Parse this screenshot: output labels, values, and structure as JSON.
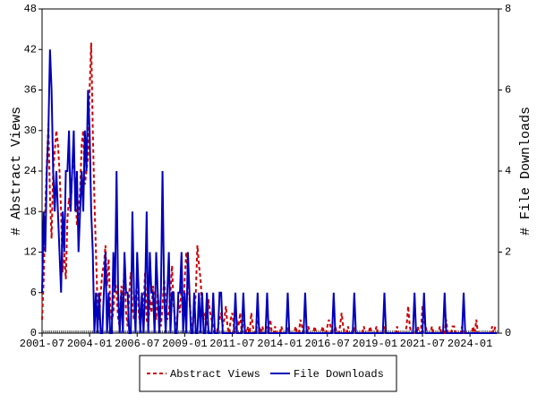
{
  "chart_data": {
    "type": "line",
    "ylabel": "# Abstract Views",
    "y2label": "# File Downloads",
    "categories": [
      "2001-07",
      null,
      null,
      null,
      null,
      null,
      null,
      null,
      null,
      null,
      null,
      null,
      null,
      null,
      null,
      null,
      null,
      null,
      null,
      null,
      null,
      null,
      null,
      null,
      null,
      null,
      null,
      null,
      null,
      null,
      "2004-01",
      null,
      null,
      null,
      null,
      null,
      null,
      null,
      null,
      null,
      null,
      null,
      null,
      null,
      null,
      null,
      null,
      null,
      null,
      null,
      null,
      null,
      null,
      null,
      null,
      null,
      null,
      null,
      null,
      null,
      "2006-07",
      null,
      null,
      null,
      null,
      null,
      null,
      null,
      null,
      null,
      null,
      null,
      null,
      null,
      null,
      null,
      null,
      null,
      null,
      null,
      null,
      null,
      null,
      null,
      null,
      null,
      null,
      null,
      null,
      null,
      "2009-01",
      null,
      null,
      null,
      null,
      null,
      null,
      null,
      null,
      null,
      null,
      null,
      null,
      null,
      null,
      null,
      null,
      null,
      null,
      null,
      null,
      null,
      null,
      null,
      null,
      null,
      null,
      null,
      null,
      null,
      "2011-07",
      null,
      null,
      null,
      null,
      null,
      null,
      null,
      null,
      null,
      null,
      null,
      null,
      null,
      null,
      null,
      null,
      null,
      null,
      null,
      null,
      null,
      null,
      null,
      null,
      null,
      null,
      null,
      null,
      null,
      "2014-01",
      null,
      null,
      null,
      null,
      null,
      null,
      null,
      null,
      null,
      null,
      null,
      null,
      null,
      null,
      null,
      null,
      null,
      null,
      null,
      null,
      null,
      null,
      null,
      null,
      null,
      null,
      null,
      null,
      null,
      "2016-07",
      null,
      null,
      null,
      null,
      null,
      null,
      null,
      null,
      null,
      null,
      null,
      null,
      null,
      null,
      null,
      null,
      null,
      null,
      null,
      null,
      null,
      null,
      null,
      null,
      null,
      null,
      null,
      null,
      null,
      "2019-01",
      null,
      null,
      null,
      null,
      null,
      null,
      null,
      null,
      null,
      null,
      null,
      null,
      null,
      null,
      null,
      null,
      null,
      null,
      null,
      null,
      null,
      null,
      null,
      null,
      null,
      null,
      null,
      null,
      null,
      "2021-07",
      null,
      null,
      null,
      null,
      null,
      null,
      null,
      null,
      null,
      null,
      null,
      null,
      null,
      null,
      null,
      null,
      null,
      null,
      null,
      null,
      null,
      null,
      null,
      null,
      null,
      null,
      null,
      null,
      null,
      "2024-01",
      null,
      null,
      null,
      null,
      null,
      null,
      null,
      null,
      null,
      null,
      null,
      null,
      null,
      null,
      null,
      null,
      null
    ],
    "series": [
      {
        "name": "Abstract Views",
        "color": "#cc0000",
        "dash": true,
        "values": [
          2,
          8,
          18,
          25,
          31,
          20,
          14,
          24,
          27,
          30,
          28,
          24,
          18,
          9,
          12,
          8,
          17,
          20,
          18,
          24,
          26,
          22,
          16,
          18,
          21,
          28,
          30,
          22,
          24,
          26,
          36,
          43,
          30,
          20,
          12,
          4,
          2,
          6,
          9,
          10,
          13,
          7,
          11,
          4,
          2,
          3,
          8,
          6,
          2,
          1,
          7,
          5,
          10,
          3,
          1,
          6,
          9,
          4,
          2,
          5,
          8,
          3,
          1,
          6,
          4,
          9,
          2,
          1,
          5,
          3,
          7,
          4,
          2,
          6,
          3,
          1,
          4,
          8,
          5,
          2,
          3,
          6,
          10,
          4,
          2,
          1,
          5,
          3,
          7,
          2,
          8,
          12,
          9,
          5,
          2,
          1,
          3,
          6,
          13,
          10,
          8,
          4,
          2,
          3,
          1,
          5,
          3,
          2,
          1,
          0,
          0,
          1,
          2,
          3,
          1,
          2,
          4,
          1,
          0,
          2,
          3,
          1,
          0,
          2,
          1,
          3,
          0,
          2,
          1,
          0,
          1,
          0,
          3,
          1,
          0,
          0,
          2,
          1,
          0,
          1,
          0,
          0,
          1,
          0,
          2,
          0,
          0,
          1,
          0,
          0,
          0,
          1,
          0,
          0,
          0,
          1,
          0,
          0,
          0,
          0,
          1,
          0,
          0,
          2,
          1,
          0,
          0,
          0,
          1,
          0,
          0,
          0,
          1,
          0,
          0,
          0,
          0,
          1,
          0,
          0,
          1,
          2,
          1,
          0,
          0,
          1,
          0,
          0,
          1,
          3,
          1,
          0,
          0,
          1,
          0,
          0,
          0,
          1,
          0,
          0,
          0,
          0,
          0,
          1,
          0,
          0,
          0,
          1,
          0,
          0,
          0,
          1,
          0,
          0,
          0,
          0,
          1,
          0,
          0,
          0,
          0,
          0,
          0,
          0,
          1,
          0,
          0,
          0,
          0,
          0,
          1,
          4,
          1,
          0,
          0,
          0,
          0,
          1,
          0,
          0,
          4,
          2,
          1,
          0,
          0,
          0,
          1,
          0,
          0,
          0,
          0,
          1,
          0,
          0,
          0,
          2,
          0,
          0,
          0,
          1,
          1,
          0,
          0,
          0,
          0,
          1,
          0,
          0,
          0,
          0,
          0,
          0,
          1,
          0,
          2,
          0,
          0,
          0,
          0,
          0,
          0,
          0,
          0,
          0,
          1,
          0,
          1,
          1
        ]
      },
      {
        "name": "File Downloads",
        "color": "#0000bb",
        "axis": "y2",
        "values": [
          1,
          3,
          2,
          4,
          5,
          7,
          6,
          4,
          3,
          4,
          3,
          2,
          1,
          3,
          2,
          4,
          4,
          5,
          3,
          4,
          5,
          3,
          4,
          2,
          3,
          4,
          3,
          5,
          4,
          6,
          5,
          3,
          2,
          0,
          1,
          0,
          1,
          0,
          0,
          1,
          2,
          0,
          1,
          0,
          0,
          2,
          1,
          4,
          1,
          0,
          1,
          0,
          2,
          1,
          1,
          0,
          0,
          3,
          1,
          0,
          2,
          1,
          0,
          1,
          0,
          1,
          3,
          0,
          2,
          1,
          1,
          0,
          2,
          1,
          0,
          1,
          4,
          1,
          0,
          1,
          2,
          0,
          1,
          1,
          0,
          0,
          1,
          1,
          2,
          0,
          1,
          0,
          2,
          1,
          0,
          0,
          1,
          0,
          0,
          1,
          0,
          1,
          0,
          0,
          1,
          0,
          0,
          0,
          1,
          0,
          0,
          0,
          1,
          1,
          0,
          0,
          0,
          0,
          0,
          0,
          0,
          0,
          1,
          0,
          0,
          0,
          0,
          1,
          0,
          0,
          0,
          0,
          0,
          0,
          0,
          0,
          1,
          0,
          0,
          0,
          0,
          0,
          1,
          0,
          0,
          0,
          0,
          0,
          0,
          0,
          0,
          0,
          0,
          0,
          0,
          1,
          0,
          0,
          0,
          0,
          0,
          0,
          0,
          0,
          0,
          0,
          1,
          0,
          0,
          0,
          0,
          0,
          0,
          0,
          0,
          0,
          0,
          0,
          0,
          0,
          0,
          0,
          0,
          0,
          1,
          0,
          0,
          0,
          0,
          0,
          0,
          0,
          0,
          0,
          0,
          0,
          0,
          1,
          0,
          0,
          0,
          0,
          0,
          0,
          0,
          0,
          0,
          0,
          0,
          0,
          0,
          0,
          0,
          0,
          0,
          0,
          1,
          0,
          0,
          0,
          0,
          0,
          0,
          0,
          0,
          0,
          0,
          0,
          0,
          0,
          0,
          0,
          0,
          0,
          0,
          1,
          0,
          0,
          0,
          0,
          0,
          1,
          0,
          0,
          0,
          0,
          0,
          0,
          0,
          0,
          0,
          0,
          0,
          0,
          1,
          0,
          0,
          0,
          0,
          0,
          0,
          0,
          0,
          0,
          0,
          0,
          1,
          0,
          0,
          0,
          0,
          0,
          0,
          0,
          0,
          0,
          0,
          0,
          0,
          0,
          0,
          0,
          0,
          0,
          0,
          0,
          0,
          0
        ]
      }
    ],
    "ylim": [
      0,
      48
    ],
    "yticks": [
      0,
      6,
      12,
      18,
      24,
      30,
      36,
      42,
      48
    ],
    "y2lim": [
      0,
      8
    ],
    "y2ticks": [
      0,
      2,
      4,
      6,
      8
    ],
    "legend": "bottom"
  }
}
